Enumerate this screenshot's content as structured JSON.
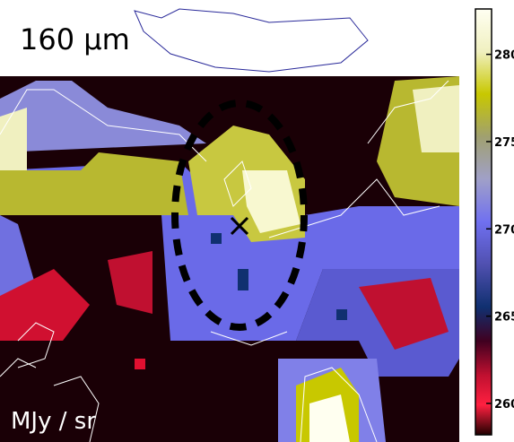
{
  "image": {
    "band_label": "160 μm",
    "unit_label": "MJy / sr"
  },
  "colorbar": {
    "ylim": [
      258.2,
      282.6
    ],
    "ticks": [
      260,
      265,
      270,
      275,
      280
    ]
  }
}
